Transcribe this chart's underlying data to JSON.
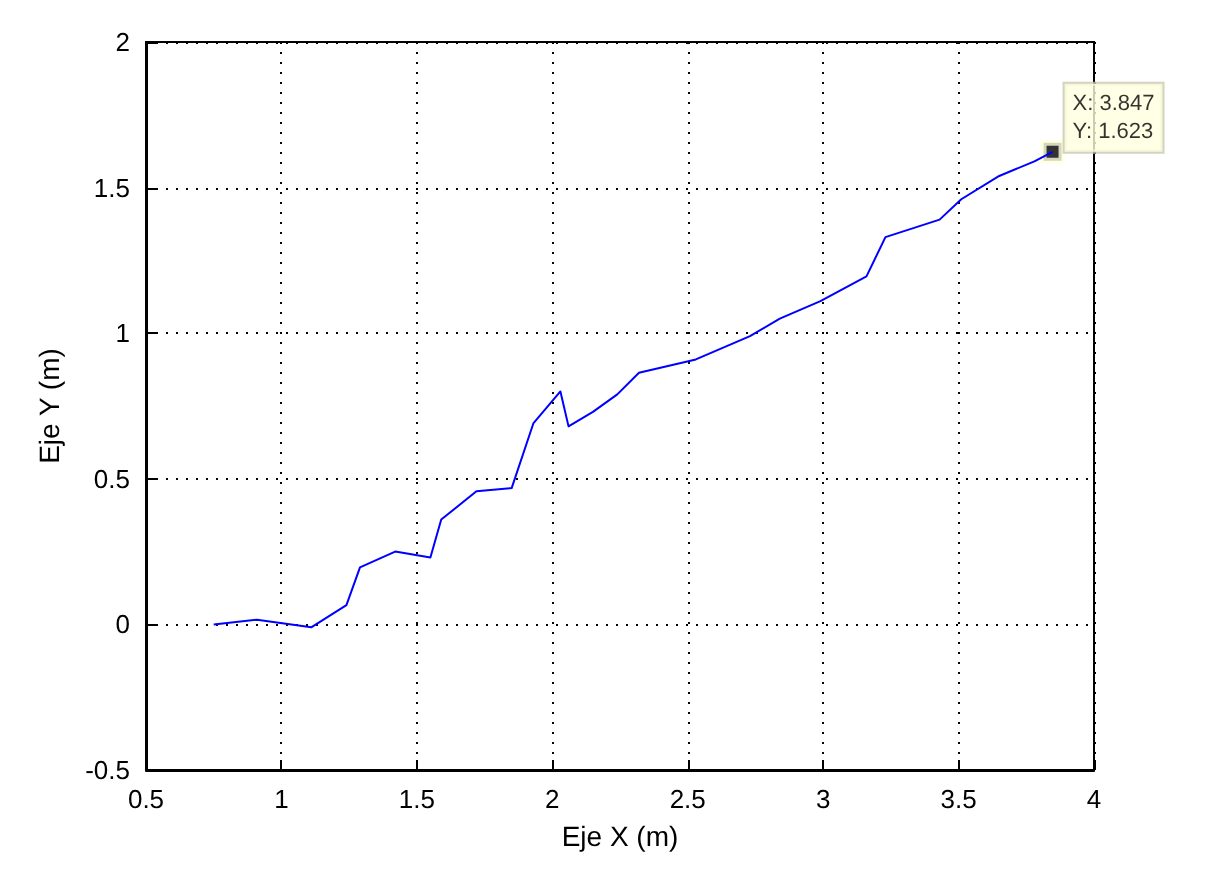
{
  "chart_data": {
    "type": "line",
    "xlabel": "Eje X (m)",
    "ylabel": "Eje Y (m)",
    "x": [
      0.75,
      0.91,
      1.11,
      1.24,
      1.29,
      1.42,
      1.55,
      1.59,
      1.72,
      1.85,
      1.93,
      2.03,
      2.06,
      2.15,
      2.24,
      2.32,
      2.53,
      2.73,
      2.84,
      2.99,
      3.16,
      3.23,
      3.43,
      3.51,
      3.65,
      3.78,
      3.847
    ],
    "series": [
      {
        "color": "#0000ff",
        "values": [
          0,
          0.016,
          -0.01,
          0.066,
          0.196,
          0.25,
          0.23,
          0.36,
          0.457,
          0.468,
          0.69,
          0.8,
          0.68,
          0.73,
          0.79,
          0.864,
          0.91,
          0.99,
          1.05,
          1.11,
          1.195,
          1.33,
          1.39,
          1.46,
          1.54,
          1.59,
          1.623
        ]
      }
    ],
    "xlim": [
      0.5,
      4
    ],
    "xticks": [
      0.5,
      1,
      1.5,
      2,
      2.5,
      3,
      3.5,
      4
    ],
    "ylim": [
      -0.5,
      2
    ],
    "yticks": [
      -0.5,
      0,
      0.5,
      1,
      1.5,
      2
    ],
    "grid": true,
    "marker": "none",
    "line_style": "solid",
    "annotations": [
      {
        "text": "X: 3.847\nY: 1.623",
        "x": 3.847,
        "y": 1.623
      }
    ]
  }
}
